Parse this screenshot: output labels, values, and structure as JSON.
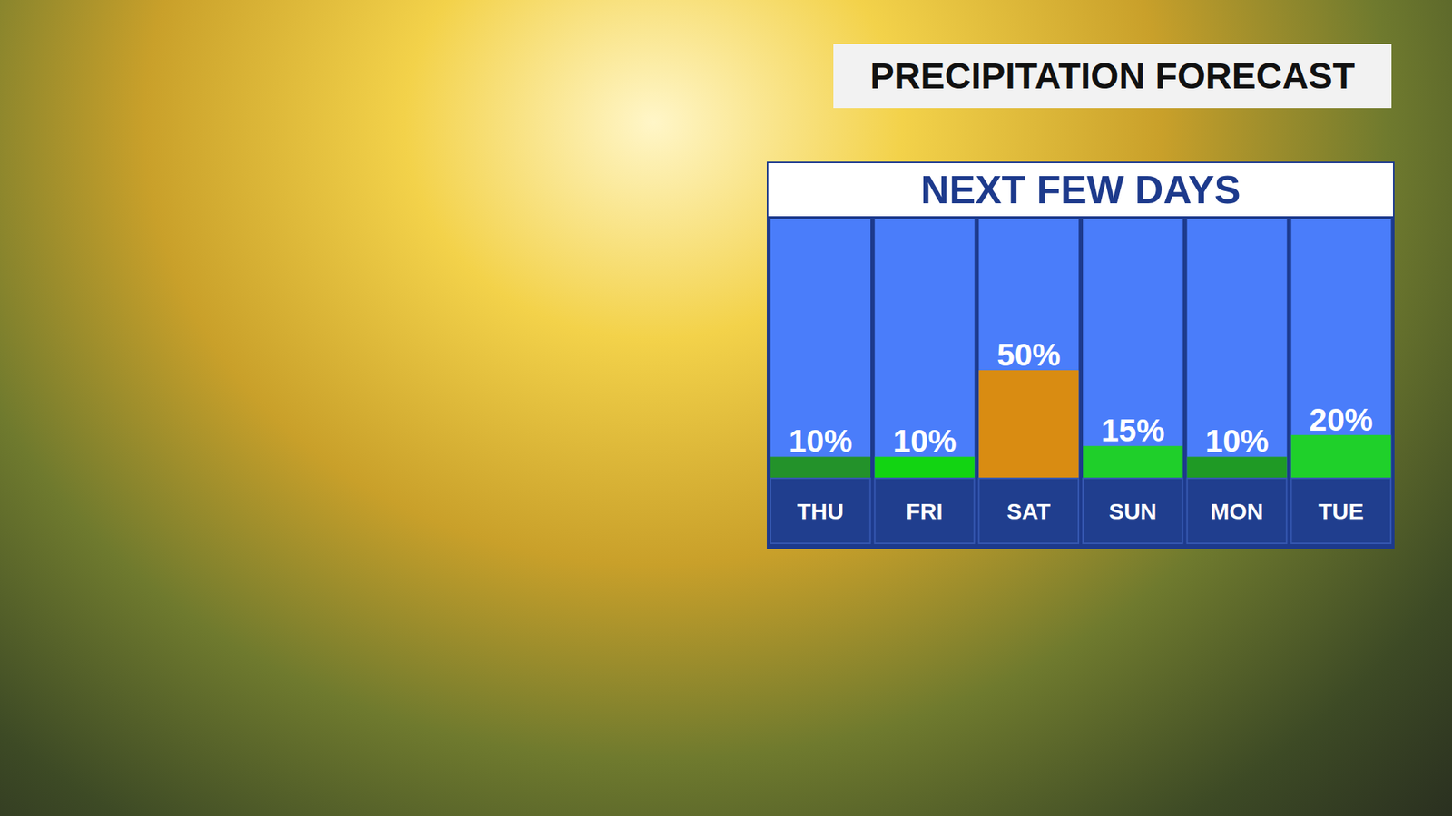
{
  "chart_data": {
    "type": "bar",
    "title": "PRECIPITATION FORECAST",
    "subtitle": "NEXT FEW DAYS",
    "categories": [
      "THU",
      "FRI",
      "SAT",
      "SUN",
      "MON",
      "TUE"
    ],
    "values": [
      10,
      10,
      50,
      15,
      10,
      20
    ],
    "value_labels": [
      "10%",
      "10%",
      "50%",
      "15%",
      "10%",
      "20%"
    ],
    "colors": [
      "#23922a",
      "#12d412",
      "#d98c12",
      "#1fcf2a",
      "#1f9a25",
      "#1fd02a"
    ],
    "ylim": [
      0,
      120
    ],
    "data_labels": true,
    "tick_labels": "x",
    "grid": false
  }
}
